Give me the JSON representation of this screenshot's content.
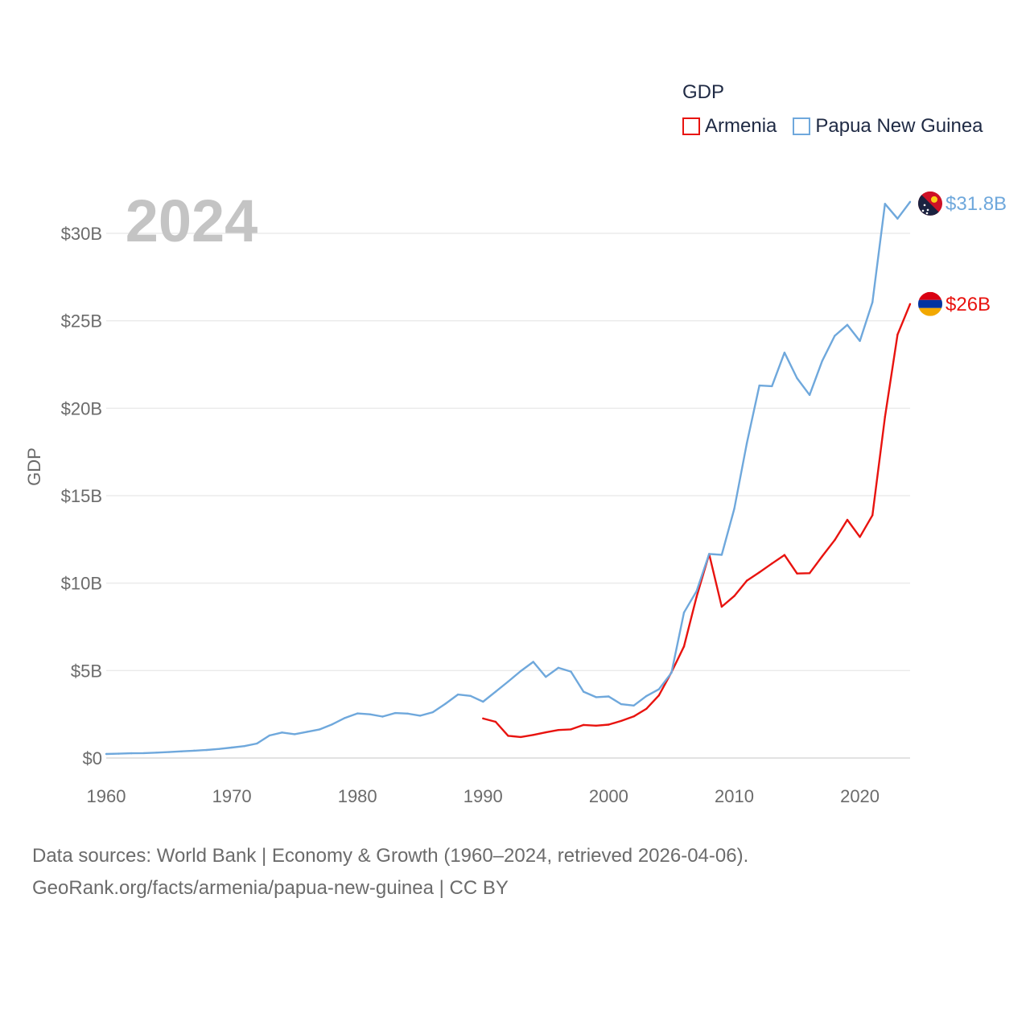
{
  "legend": {
    "title": "GDP",
    "items": [
      "Armenia",
      "Papua New Guinea"
    ]
  },
  "year_label": "2024",
  "footer": {
    "line1": "Data sources: World Bank | Economy & Growth (1960–2024, retrieved 2026-04-06).",
    "line2": "GeoRank.org/facts/armenia/papua-new-guinea | CC BY"
  },
  "colors": {
    "armenia": "#e8130f",
    "png": "#6fa8dc",
    "grid": "#e6e6e6",
    "axis_text": "#6b6b6b",
    "year_text": "#c4c4c4"
  },
  "chart_data": {
    "type": "line",
    "title": "GDP",
    "xlabel": "",
    "ylabel": "GDP",
    "xlim": [
      1960,
      2024
    ],
    "ylim": [
      0,
      32
    ],
    "x_ticks": [
      1960,
      1970,
      1980,
      1990,
      2000,
      2010,
      2020
    ],
    "x_tick_labels": [
      "1960",
      "1970",
      "1980",
      "1990",
      "2000",
      "2010",
      "2020"
    ],
    "y_ticks": [
      0,
      5,
      10,
      15,
      20,
      25,
      30
    ],
    "y_tick_labels": [
      "$0",
      "$5B",
      "$10B",
      "$15B",
      "$20B",
      "$25B",
      "$30B"
    ],
    "grid": true,
    "unit": "USD billions",
    "series": [
      {
        "name": "Armenia",
        "color": "#e8130f",
        "end_label": "$26B",
        "x": [
          1990,
          1991,
          1992,
          1993,
          1994,
          1995,
          1996,
          1997,
          1998,
          1999,
          2000,
          2001,
          2002,
          2003,
          2004,
          2005,
          2006,
          2007,
          2008,
          2009,
          2010,
          2011,
          2012,
          2013,
          2014,
          2015,
          2016,
          2017,
          2018,
          2019,
          2020,
          2021,
          2022,
          2023,
          2024
        ],
        "values": [
          2.26,
          2.07,
          1.27,
          1.2,
          1.32,
          1.47,
          1.6,
          1.64,
          1.89,
          1.85,
          1.91,
          2.12,
          2.38,
          2.81,
          3.58,
          4.9,
          6.38,
          9.21,
          11.66,
          8.65,
          9.26,
          10.14,
          10.62,
          11.12,
          11.61,
          10.55,
          10.57,
          11.53,
          12.46,
          13.62,
          12.64,
          13.88,
          19.51,
          24.21,
          25.96
        ]
      },
      {
        "name": "Papua New Guinea",
        "color": "#6fa8dc",
        "end_label": "$31.8B",
        "x": [
          1960,
          1961,
          1962,
          1963,
          1964,
          1965,
          1966,
          1967,
          1968,
          1969,
          1970,
          1971,
          1972,
          1973,
          1974,
          1975,
          1976,
          1977,
          1978,
          1979,
          1980,
          1981,
          1982,
          1983,
          1984,
          1985,
          1986,
          1987,
          1988,
          1989,
          1990,
          1991,
          1992,
          1993,
          1994,
          1995,
          1996,
          1997,
          1998,
          1999,
          2000,
          2001,
          2002,
          2003,
          2004,
          2005,
          2006,
          2007,
          2008,
          2009,
          2010,
          2011,
          2012,
          2013,
          2014,
          2015,
          2016,
          2017,
          2018,
          2019,
          2020,
          2021,
          2022,
          2023,
          2024
        ],
        "values": [
          0.23,
          0.25,
          0.27,
          0.28,
          0.31,
          0.34,
          0.38,
          0.42,
          0.46,
          0.52,
          0.6,
          0.68,
          0.83,
          1.29,
          1.46,
          1.36,
          1.5,
          1.64,
          1.93,
          2.29,
          2.55,
          2.5,
          2.37,
          2.57,
          2.54,
          2.42,
          2.62,
          3.1,
          3.63,
          3.55,
          3.22,
          3.79,
          4.37,
          4.97,
          5.5,
          4.64,
          5.16,
          4.94,
          3.79,
          3.48,
          3.52,
          3.08,
          3.0,
          3.54,
          3.93,
          4.87,
          8.32,
          9.54,
          11.67,
          11.62,
          14.25,
          18.0,
          21.3,
          21.26,
          23.18,
          21.72,
          20.76,
          22.7,
          24.14,
          24.77,
          23.85,
          26.06,
          31.69,
          30.84,
          31.8
        ]
      }
    ]
  }
}
